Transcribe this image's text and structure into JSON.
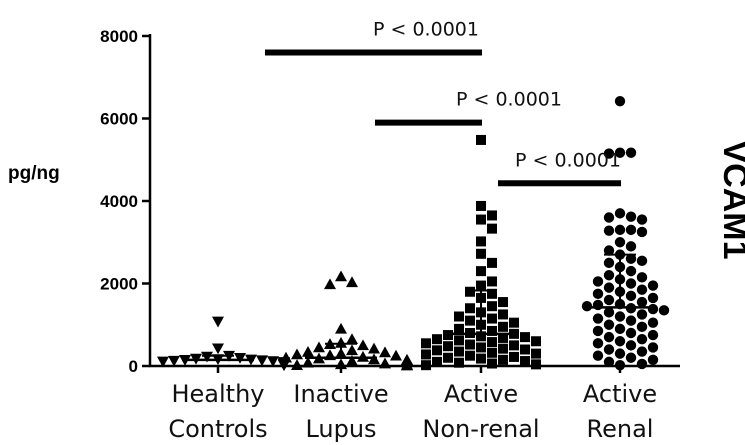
{
  "chart_data": {
    "type": "scatter",
    "title": "VCAM1",
    "ylabel": "pg/ng",
    "ylim": [
      0,
      8000
    ],
    "yticks": [
      0,
      2000,
      4000,
      6000,
      8000
    ],
    "ytick_labels": [
      "0",
      "2000",
      "4000",
      "6000",
      "8000"
    ],
    "categories": [
      {
        "line1": "Healthy",
        "line2": "Controls"
      },
      {
        "line1": "Inactive",
        "line2": "Lupus"
      },
      {
        "line1": "Active",
        "line2": "Non-renal"
      },
      {
        "line1": "Active",
        "line2": "Renal"
      }
    ],
    "series": [
      {
        "marker": "triangle-down",
        "mean": 150,
        "sd_upper": 250,
        "values": [
          1080,
          430,
          250,
          230,
          200,
          180,
          160,
          140,
          120,
          100,
          90,
          80,
          70,
          60,
          50,
          40,
          30,
          20,
          150,
          170,
          130,
          110
        ]
      },
      {
        "marker": "triangle-up",
        "mean": 200,
        "sd_upper": 540,
        "values": [
          2170,
          2030,
          1980,
          900,
          650,
          560,
          530,
          500,
          450,
          420,
          380,
          340,
          300,
          280,
          250,
          220,
          200,
          180,
          160,
          140,
          120,
          100,
          80,
          60,
          40,
          30,
          20,
          10,
          260,
          330,
          150,
          90
        ]
      },
      {
        "marker": "square",
        "mean": 780,
        "sd_upper": 1830,
        "values": [
          5480,
          3880,
          3650,
          3550,
          3330,
          3020,
          2720,
          2500,
          2300,
          2050,
          1950,
          1800,
          1750,
          1650,
          1550,
          1450,
          1400,
          1300,
          1250,
          1200,
          1150,
          1100,
          1050,
          1000,
          950,
          900,
          850,
          800,
          780,
          750,
          720,
          700,
          680,
          650,
          620,
          600,
          580,
          550,
          520,
          500,
          480,
          450,
          420,
          400,
          380,
          350,
          320,
          300,
          280,
          250,
          220,
          200,
          180,
          150,
          120,
          100,
          80,
          60,
          40,
          20
        ]
      },
      {
        "marker": "circle",
        "mean": 1420,
        "sd_upper": 2700,
        "values": [
          6420,
          5170,
          5170,
          5150,
          3700,
          3620,
          3600,
          3550,
          3300,
          3300,
          3280,
          3250,
          3000,
          2900,
          2800,
          2700,
          2600,
          2550,
          2500,
          2400,
          2300,
          2200,
          2150,
          2100,
          2050,
          2000,
          1950,
          1900,
          1850,
          1800,
          1750,
          1700,
          1650,
          1600,
          1550,
          1500,
          1480,
          1450,
          1400,
          1380,
          1350,
          1300,
          1250,
          1200,
          1150,
          1100,
          1050,
          1000,
          950,
          900,
          850,
          800,
          750,
          700,
          650,
          600,
          550,
          500,
          450,
          400,
          350,
          300,
          250,
          200,
          150,
          100,
          50,
          20
        ]
      }
    ],
    "comparisons": [
      {
        "label": "P < 0.0001",
        "from": 1,
        "to": 3,
        "y": 7600
      },
      {
        "label": "P < 0.0001",
        "from": 2,
        "to": 3,
        "y": 5900
      },
      {
        "label": "P < 0.0001",
        "from": 3,
        "to": 4,
        "y": 4430
      }
    ],
    "grid": false,
    "legend": "none"
  }
}
